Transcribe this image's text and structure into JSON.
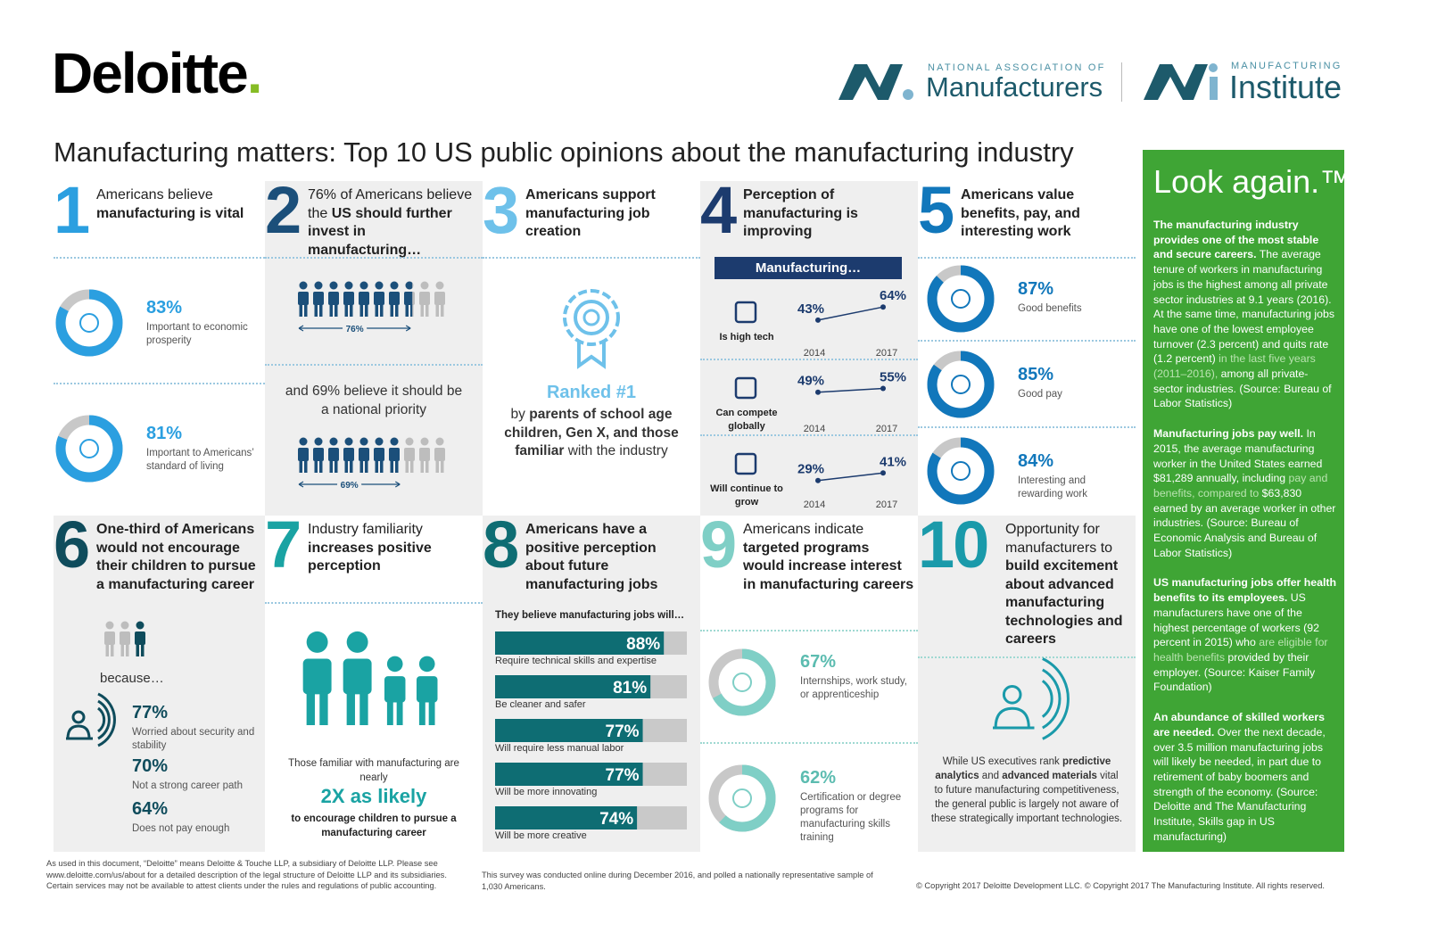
{
  "header": {
    "logo": "Deloitte",
    "logo_dot": ".",
    "partners": [
      {
        "small": "NATIONAL ASSOCIATION OF",
        "large": "Manufacturers"
      },
      {
        "small": "MANUFACTURING",
        "large": "Institute"
      }
    ]
  },
  "title": "Manufacturing matters: Top 10 US public opinions about the manufacturing industry",
  "items": [
    {
      "number": "1",
      "color": "#2b9fe0",
      "heading": [
        {
          "text": "Americans believe ",
          "style": "regular"
        },
        {
          "text": "manufacturing is vital",
          "style": "bold"
        }
      ],
      "stats": [
        {
          "value": 83,
          "label": "83%",
          "desc": "Important to economic prosperity"
        },
        {
          "value": 81,
          "label": "81%",
          "desc": "Important to Americans’ standard of living"
        }
      ]
    },
    {
      "number": "2",
      "color": "#1b4f7a",
      "heading": [
        {
          "text": "76% of Americans believe the ",
          "style": "regular"
        },
        {
          "text": "US should further invest in manufacturing…",
          "style": "bold"
        }
      ],
      "pictograms": [
        {
          "value": 76,
          "label": "76%"
        },
        {
          "value": 69,
          "label": "69%"
        }
      ],
      "middle_text": "and 69% believe it should be a national priority"
    },
    {
      "number": "3",
      "color": "#6ec1ea",
      "heading": [
        {
          "text": "Americans support manufacturing job creation",
          "style": "bold"
        }
      ],
      "ranked": "Ranked #1",
      "text": [
        {
          "text": "by ",
          "style": "regular"
        },
        {
          "text": "parents of school age children, Gen X, and those familiar",
          "style": "bold"
        },
        {
          "text": " with the industry",
          "style": "regular"
        }
      ]
    },
    {
      "number": "4",
      "color": "#1c3b6e",
      "heading": [
        {
          "text": "Perception of manufacturing is improving",
          "style": "bold"
        }
      ],
      "banner": "Manufacturing…",
      "x": [
        "2014",
        "2017"
      ],
      "ylim": [
        0,
        100
      ],
      "rows": [
        {
          "label": "Is high tech",
          "values": [
            43,
            64
          ],
          "value_labels": [
            "43%",
            "64%"
          ]
        },
        {
          "label": "Can compete globally",
          "values": [
            49,
            55
          ],
          "value_labels": [
            "49%",
            "55%"
          ]
        },
        {
          "label": "Will continue to grow",
          "values": [
            29,
            41
          ],
          "value_labels": [
            "29%",
            "41%"
          ]
        }
      ]
    },
    {
      "number": "5",
      "color": "#1177bb",
      "heading": [
        {
          "text": "Americans value benefits, pay, and interesting work",
          "style": "bold"
        }
      ],
      "stats": [
        {
          "value": 87,
          "label": "87%",
          "desc": "Good benefits"
        },
        {
          "value": 85,
          "label": "85%",
          "desc": "Good pay"
        },
        {
          "value": 84,
          "label": "84%",
          "desc": "Interesting and rewarding work"
        }
      ]
    },
    {
      "number": "6",
      "color": "#0f4c5c",
      "heading": [
        {
          "text": "One-third of Americans would not encourage their children to pursue a manufacturing career",
          "style": "bold"
        }
      ],
      "because": "because…",
      "reasons": [
        {
          "label": "77%",
          "desc": "Worried about security and stability"
        },
        {
          "label": "70%",
          "desc": "Not a strong career path"
        },
        {
          "label": "64%",
          "desc": "Does not pay enough"
        }
      ]
    },
    {
      "number": "7",
      "color": "#1aa3a3",
      "heading": [
        {
          "text": "Industry familiarity ",
          "style": "regular"
        },
        {
          "text": "increases positive perception",
          "style": "bold"
        }
      ],
      "text_before": "Those familiar with manufacturing are nearly",
      "highlight": "2X as likely",
      "text_after": "to encourage children to pursue a manufacturing career"
    },
    {
      "number": "8",
      "color": "#0e6d73",
      "heading": [
        {
          "text": "Americans have a positive perception about future manufacturing jobs",
          "style": "bold"
        }
      ],
      "subheading": "They believe manufacturing jobs will…",
      "xlim": [
        0,
        100
      ],
      "bars": [
        {
          "value": 88,
          "label": "88%",
          "desc": "Require technical skills and expertise"
        },
        {
          "value": 81,
          "label": "81%",
          "desc": "Be cleaner and safer"
        },
        {
          "value": 77,
          "label": "77%",
          "desc": "Will require less manual labor"
        },
        {
          "value": 77,
          "label": "77%",
          "desc": "Will be more innovating"
        },
        {
          "value": 74,
          "label": "74%",
          "desc": "Will be more creative"
        }
      ]
    },
    {
      "number": "9",
      "color": "#7fcfc6",
      "heading": [
        {
          "text": "Americans indicate ",
          "style": "regular"
        },
        {
          "text": "targeted programs would increase interest in manufacturing careers",
          "style": "bold"
        }
      ],
      "stats": [
        {
          "value": 67,
          "label": "67%",
          "desc": "Internships, work study, or apprenticeship"
        },
        {
          "value": 62,
          "label": "62%",
          "desc": "Certification or degree programs for manufacturing skills training"
        }
      ]
    },
    {
      "number": "10",
      "color": "#1a9aaa",
      "heading": [
        {
          "text": "Opportunity for manufacturers to ",
          "style": "regular"
        },
        {
          "text": "build excitement about advanced manufacturing technologies and careers",
          "style": "bold"
        }
      ],
      "text": [
        {
          "text": "While US executives rank ",
          "style": "regular"
        },
        {
          "text": "predictive analytics",
          "style": "bold"
        },
        {
          "text": " and ",
          "style": "regular"
        },
        {
          "text": "advanced materials",
          "style": "bold"
        },
        {
          "text": " vital to future manufacturing competitiveness, the general public is largely not aware of these strategically important technologies.",
          "style": "regular"
        }
      ]
    }
  ],
  "sidebar": {
    "title": "Look again.™",
    "paragraphs": [
      [
        {
          "text": "The manufacturing industry provides one of the most stable and secure careers.",
          "style": "bold"
        },
        {
          "text": " The average tenure of workers in manufacturing jobs is the highest among all private sector industries at 9.1 years (2016). At the same time, manufacturing jobs have one of the lowest employee turnover (2.3 percent) and quits rate (1.2 percent)",
          "style": "regular"
        },
        {
          "text": " in the last five years (2011–2016),",
          "style": "muted"
        },
        {
          "text": " among all private-sector industries. (Source: Bureau of Labor Statistics)",
          "style": "regular"
        }
      ],
      [
        {
          "text": "Manufacturing jobs pay well.",
          "style": "bold"
        },
        {
          "text": " In 2015, the average manufacturing worker in the United States earned $81,289 annually, including",
          "style": "regular"
        },
        {
          "text": " pay and benefits, compared to",
          "style": "muted"
        },
        {
          "text": " $63,830 earned by an average worker in other industries. (Source: Bureau of Economic Analysis and Bureau of Labor Statistics)",
          "style": "regular"
        }
      ],
      [
        {
          "text": "US manufacturing jobs offer health benefits to its employees.",
          "style": "bold"
        },
        {
          "text": " US manufacturers have one of the highest percentage of workers (92 percent in 2015) who",
          "style": "regular"
        },
        {
          "text": " are eligible for health benefits",
          "style": "muted"
        },
        {
          "text": " provided by their employer. (Source: Kaiser Family Foundation)",
          "style": "regular"
        }
      ],
      [
        {
          "text": "An abundance of skilled workers are needed.",
          "style": "bold"
        },
        {
          "text": " Over the next decade, over 3.5 million manufacturing jobs will likely be needed, in part due to retirement of baby boomers and strength of the economy. (Source: Deloitte and The Manufacturing Institute, Skills gap in US manufacturing)",
          "style": "regular"
        }
      ]
    ]
  },
  "footer": {
    "legal": "As used in this document, “Deloitte” means Deloitte & Touche LLP, a subsidiary of Deloitte LLP. Please see www.deloitte.com/us/about for a detailed description of the legal structure of Deloitte LLP and its subsidiaries. Certain services may not be available to attest clients under the rules and regulations of public accounting.",
    "survey": "This survey was conducted online during December 2016, and polled a nationally representative sample of 1,030 Americans.",
    "copyright": "© Copyright 2017 Deloitte Development LLC. © Copyright 2017 The Manufacturing Institute. All rights reserved."
  }
}
